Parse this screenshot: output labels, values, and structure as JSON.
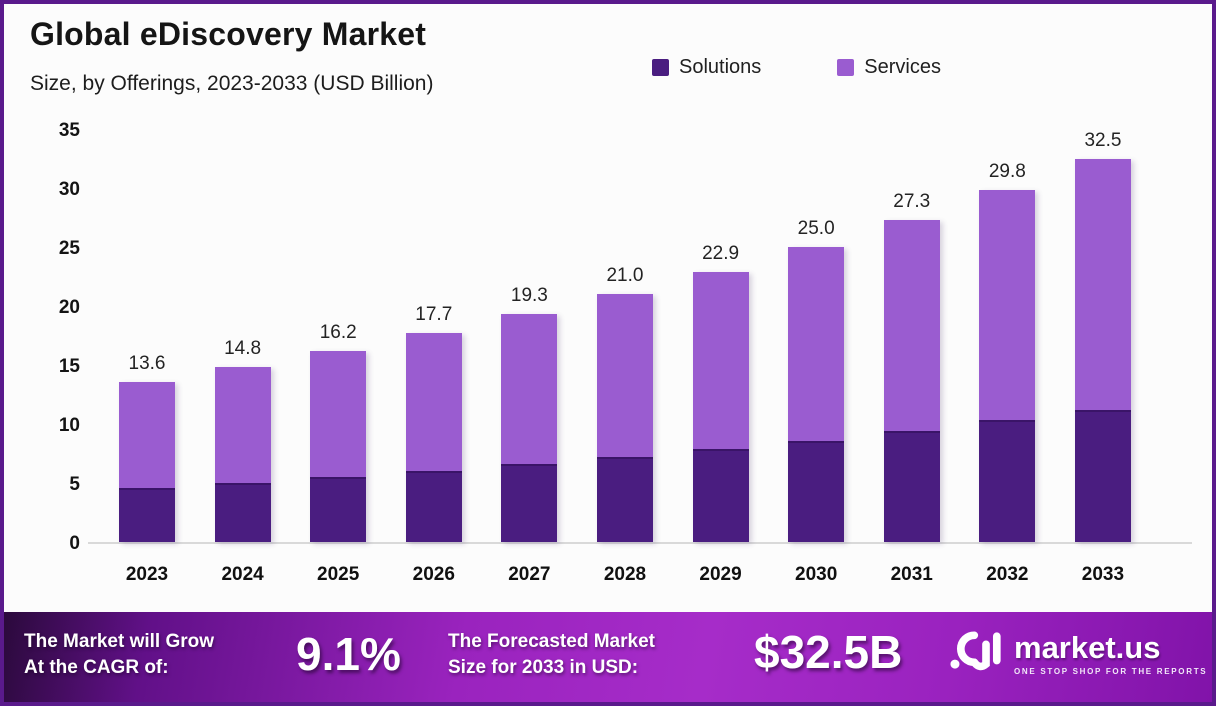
{
  "header": {
    "title": "Global eDiscovery Market",
    "subtitle": "Size, by Offerings, 2023-2033 (USD Billion)"
  },
  "legend": [
    {
      "label": "Solutions",
      "color": "#4A1D80"
    },
    {
      "label": "Services",
      "color": "#9A5CD0"
    }
  ],
  "chart_data": {
    "type": "bar",
    "stacked": true,
    "title": "Global eDiscovery Market Size, by Offerings, 2023-2033 (USD Billion)",
    "categories": [
      "2023",
      "2024",
      "2025",
      "2026",
      "2027",
      "2028",
      "2029",
      "2030",
      "2031",
      "2032",
      "2033"
    ],
    "series": [
      {
        "name": "Solutions",
        "color": "#4A1D80",
        "values": [
          4.6,
          5.0,
          5.5,
          6.0,
          6.6,
          7.2,
          7.9,
          8.6,
          9.4,
          10.3,
          11.2
        ]
      },
      {
        "name": "Services",
        "color": "#9A5CD0",
        "values": [
          9.0,
          9.8,
          10.7,
          11.7,
          12.7,
          13.8,
          15.0,
          16.4,
          17.9,
          19.5,
          21.3
        ]
      }
    ],
    "totals": [
      13.6,
      14.8,
      16.2,
      17.7,
      19.3,
      21.0,
      22.9,
      25.0,
      27.3,
      29.8,
      32.5
    ],
    "total_labels": [
      "13.6",
      "14.8",
      "16.2",
      "17.7",
      "19.3",
      "21.0",
      "22.9",
      "25.0",
      "27.3",
      "29.8",
      "32.5"
    ],
    "yticks": [
      35,
      30,
      25,
      20,
      15,
      10,
      5,
      0
    ],
    "ylim": [
      0,
      35
    ],
    "xlabel": "",
    "ylabel": "",
    "grid": false,
    "legend_position": "top-right"
  },
  "banner": {
    "cagr_line1": "The Market will Grow",
    "cagr_line2": "At the CAGR of:",
    "cagr_value": "9.1%",
    "forecast_line1": "The Forecasted Market",
    "forecast_line2": "Size for 2033 in USD:",
    "forecast_value": "$32.5B",
    "logo_text": "market.us",
    "logo_tagline": "ONE STOP SHOP FOR THE REPORTS"
  },
  "colors": {
    "solutions": "#4A1D80",
    "services": "#9A5CD0",
    "frame_border": "#5A1A8C",
    "axis_line": "#D9D9D9",
    "text_dark": "#1A1A1A",
    "banner_text": "#FFFFFF",
    "banner_gradient": [
      "#2B0A3C",
      "#9A23BE",
      "#A62CC9",
      "#8113A9"
    ]
  }
}
